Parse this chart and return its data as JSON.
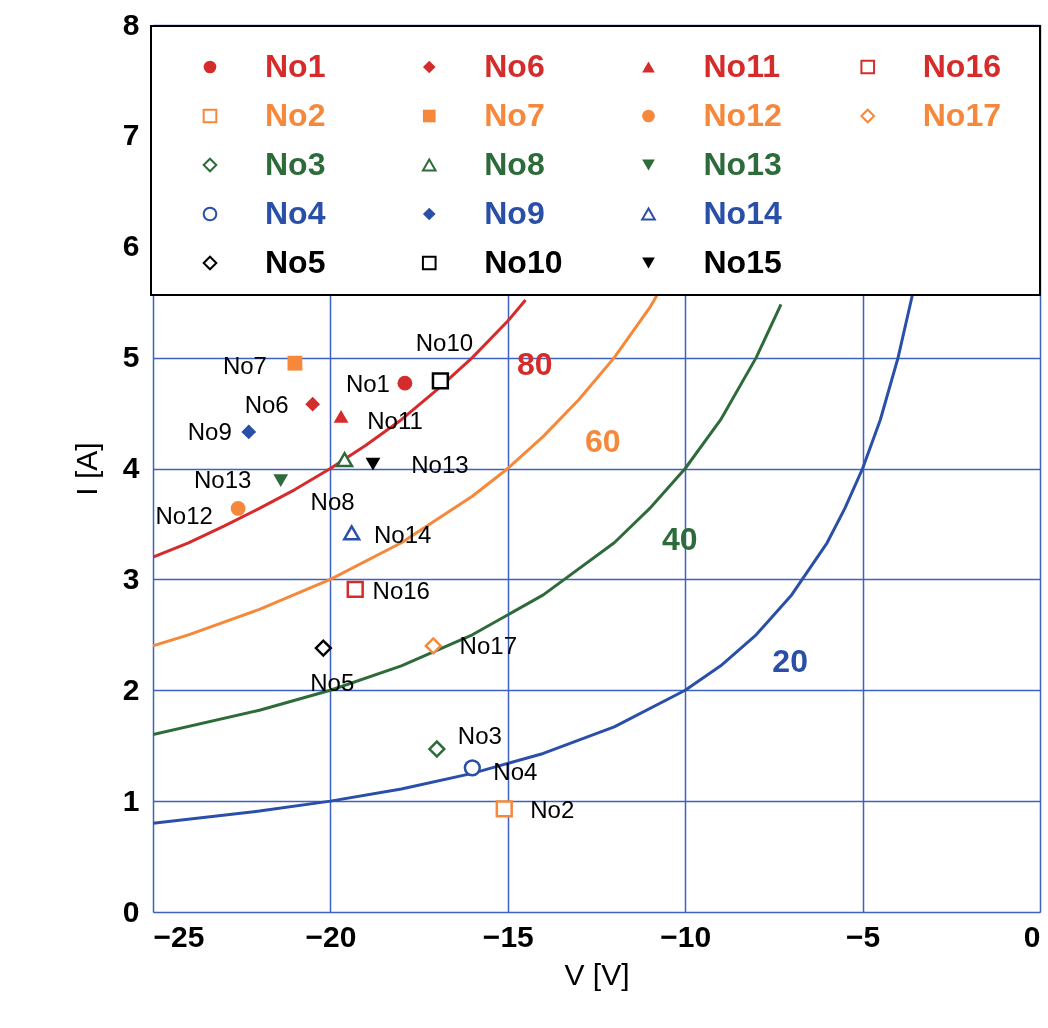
{
  "chart_data": {
    "type": "scatter",
    "xlabel": "V [V]",
    "ylabel": "I [A]",
    "xlim": [
      -25,
      0
    ],
    "xticks": [
      -25,
      -20,
      -15,
      -10,
      -5,
      0
    ],
    "ylim": [
      0,
      8
    ],
    "yticks": [
      0,
      1,
      2,
      3,
      4,
      5,
      6,
      7,
      8
    ],
    "grid": true,
    "legend": "top",
    "series": [
      {
        "type": "line",
        "color": "#d62b2b",
        "x": [
          -25,
          -24,
          -23,
          -22,
          -21,
          -20,
          -19,
          -18,
          -17,
          -16,
          -15,
          -14.5
        ],
        "values": [
          3.2,
          3.33,
          3.48,
          3.64,
          3.81,
          4.0,
          4.21,
          4.44,
          4.71,
          5.0,
          5.33,
          5.52
        ]
      },
      {
        "type": "line",
        "color": "#f5883a",
        "x": [
          -25,
          -24,
          -22,
          -20,
          -18,
          -16,
          -15,
          -14,
          -13,
          -12,
          -11,
          -10.8
        ],
        "values": [
          2.4,
          2.5,
          2.73,
          3.0,
          3.33,
          3.75,
          4.0,
          4.29,
          4.62,
          5.0,
          5.45,
          5.56
        ]
      },
      {
        "type": "line",
        "color": "#2e6b3a",
        "x": [
          -25,
          -22,
          -20,
          -18,
          -16,
          -14,
          -12,
          -11,
          -10,
          -9,
          -8,
          -7.3
        ],
        "values": [
          1.6,
          1.82,
          2.0,
          2.22,
          2.5,
          2.86,
          3.33,
          3.64,
          4.0,
          4.44,
          5.0,
          5.48
        ]
      },
      {
        "type": "line",
        "color": "#2a4fa8",
        "x": [
          -25,
          -22,
          -20,
          -18,
          -16,
          -14,
          -12,
          -10,
          -9,
          -8,
          -7,
          -6,
          -5.5,
          -5,
          -4.5,
          -4,
          -3.6
        ],
        "values": [
          0.8,
          0.91,
          1.0,
          1.11,
          1.25,
          1.43,
          1.67,
          2.0,
          2.22,
          2.5,
          2.86,
          3.33,
          3.64,
          4.0,
          4.44,
          5.0,
          5.56
        ]
      },
      {
        "name": "No1",
        "color": "#d62b2b",
        "marker": "circle",
        "x": [
          -17.9
        ],
        "values": [
          4.77
        ]
      },
      {
        "name": "No2",
        "color": "#f5883a",
        "marker": "square-open",
        "x": [
          -15.1
        ],
        "values": [
          0.93
        ]
      },
      {
        "name": "No3",
        "color": "#2e6b3a",
        "marker": "diamond-open",
        "x": [
          -17.0
        ],
        "values": [
          1.47
        ]
      },
      {
        "name": "No4",
        "color": "#2a4fa8",
        "marker": "circle-open",
        "x": [
          -16.0
        ],
        "values": [
          1.3
        ]
      },
      {
        "name": "No5",
        "color": "#000000",
        "marker": "diamond-open",
        "x": [
          -20.2
        ],
        "values": [
          2.38
        ]
      },
      {
        "name": "No6",
        "color": "#d62b2b",
        "marker": "diamond",
        "x": [
          -20.5
        ],
        "values": [
          4.58
        ]
      },
      {
        "name": "No7",
        "color": "#f5883a",
        "marker": "square",
        "x": [
          -21.0
        ],
        "values": [
          4.95
        ]
      },
      {
        "name": "No8",
        "color": "#2e6b3a",
        "marker": "triangle-open",
        "x": [
          -19.6
        ],
        "values": [
          4.08
        ]
      },
      {
        "name": "No9",
        "color": "#2a4fa8",
        "marker": "diamond",
        "x": [
          -22.3
        ],
        "values": [
          4.33
        ]
      },
      {
        "name": "No10",
        "color": "#000000",
        "marker": "square-open",
        "x": [
          -16.9
        ],
        "values": [
          4.79
        ]
      },
      {
        "name": "No11",
        "color": "#d62b2b",
        "marker": "triangle",
        "x": [
          -19.7
        ],
        "values": [
          4.47
        ]
      },
      {
        "name": "No12",
        "color": "#f5883a",
        "marker": "circle",
        "x": [
          -22.6
        ],
        "values": [
          3.64
        ]
      },
      {
        "name": "No13",
        "color": "#2e6b3a",
        "marker": "triangle-down",
        "x": [
          -21.4
        ],
        "values": [
          3.89
        ]
      },
      {
        "name": "No14",
        "color": "#2a4fa8",
        "marker": "triangle-open",
        "x": [
          -19.4
        ],
        "values": [
          3.42
        ]
      },
      {
        "name": "No15",
        "color": "#000000",
        "marker": "triangle-down",
        "x": [
          -18.8
        ],
        "values": [
          4.04
        ]
      },
      {
        "name": "No16",
        "color": "#d62b2b",
        "marker": "square-open",
        "x": [
          -19.3
        ],
        "values": [
          2.91
        ]
      },
      {
        "name": "No17",
        "color": "#f5883a",
        "marker": "diamond-open",
        "x": [
          -17.1
        ],
        "values": [
          2.4
        ]
      }
    ],
    "annotations": [
      {
        "text": "80",
        "x": -15,
        "y": 5.33
      },
      {
        "text": "60",
        "x": -13,
        "y": 4.62
      },
      {
        "text": "40",
        "x": -11,
        "y": 3.64
      },
      {
        "text": "20",
        "x": -8,
        "y": 2.5
      },
      {
        "text": "No1",
        "x": -17.9,
        "y": 4.77
      },
      {
        "text": "No2",
        "x": -15.1,
        "y": 0.93
      },
      {
        "text": "No3",
        "x": -17.0,
        "y": 1.47
      },
      {
        "text": "No4",
        "x": -16.0,
        "y": 1.3
      },
      {
        "text": "No5",
        "x": -20.2,
        "y": 2.38
      },
      {
        "text": "No6",
        "x": -20.5,
        "y": 4.58
      },
      {
        "text": "No7",
        "x": -21.0,
        "y": 4.95
      },
      {
        "text": "No8",
        "x": -19.6,
        "y": 4.08
      },
      {
        "text": "No9",
        "x": -22.3,
        "y": 4.33
      },
      {
        "text": "No10",
        "x": -16.9,
        "y": 4.79
      },
      {
        "text": "No11",
        "x": -19.7,
        "y": 4.47
      },
      {
        "text": "No12",
        "x": -22.6,
        "y": 3.64
      },
      {
        "text": "No13",
        "x": -21.4,
        "y": 3.89
      },
      {
        "text": "No14",
        "x": -19.4,
        "y": 3.42
      },
      {
        "text": "No13",
        "x": -18.8,
        "y": 4.04
      },
      {
        "text": "No16",
        "x": -19.3,
        "y": 2.91
      },
      {
        "text": "No17",
        "x": -17.1,
        "y": 2.4
      }
    ]
  }
}
